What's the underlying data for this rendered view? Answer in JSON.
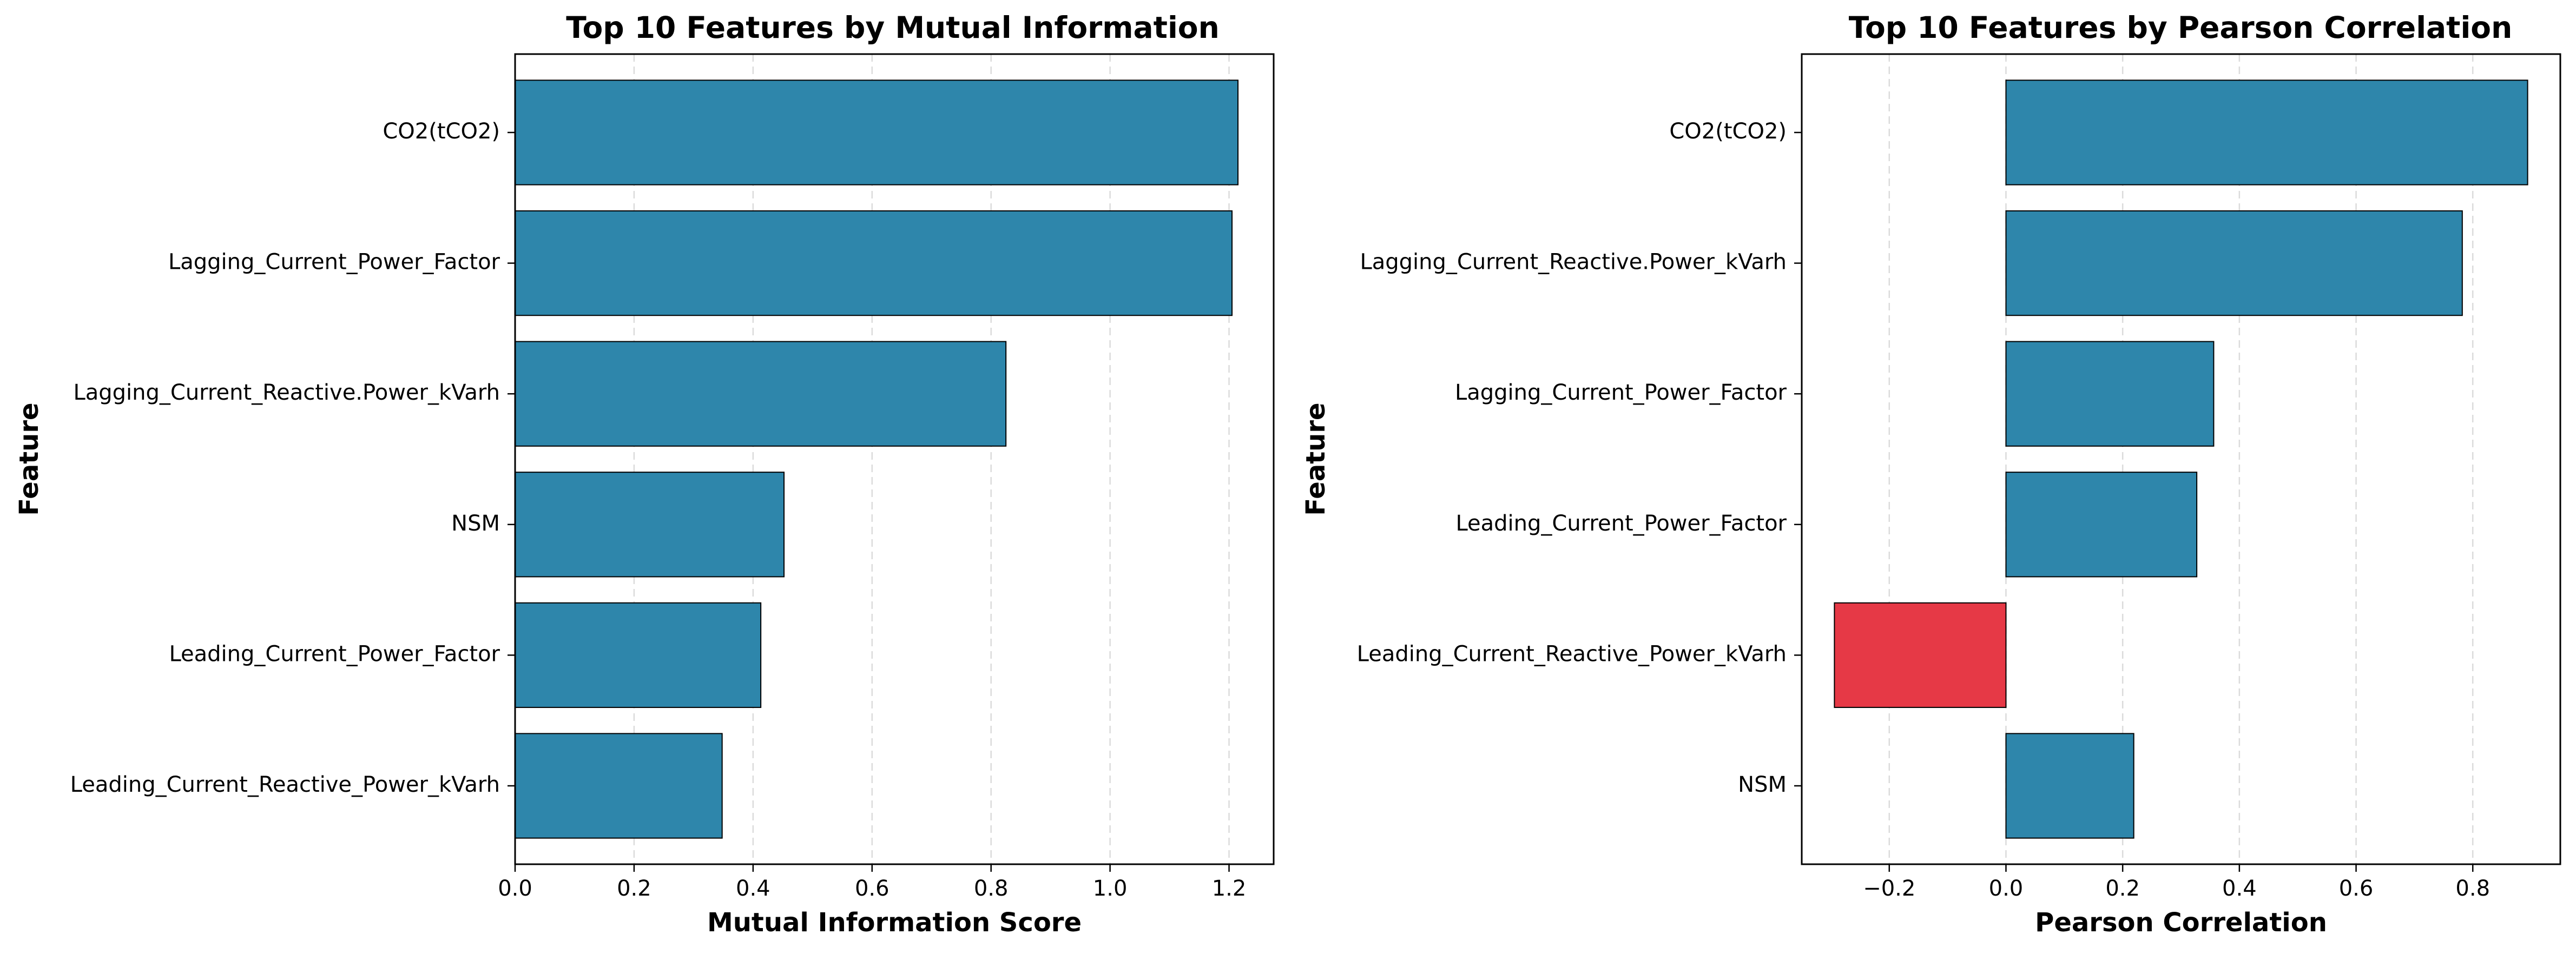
{
  "colors": {
    "positive_bar": "#2e86ab",
    "negative_bar": "#e63946",
    "bar_edge": "#000000",
    "grid": "#cccccc"
  },
  "chart_data": [
    {
      "type": "bar",
      "orientation": "horizontal",
      "title": "Top 10 Features by Mutual Information",
      "xlabel": "Mutual Information Score",
      "ylabel": "Feature",
      "categories": [
        "CO2(tCO2)",
        "Lagging_Current_Power_Factor",
        "Lagging_Current_Reactive.Power_kVarh",
        "NSM",
        "Leading_Current_Power_Factor",
        "Leading_Current_Reactive_Power_kVarh"
      ],
      "values": [
        1.215,
        1.205,
        0.825,
        0.452,
        0.413,
        0.348
      ],
      "xlim": [
        0,
        1.275
      ],
      "xticks": [
        0.0,
        0.2,
        0.4,
        0.6,
        0.8,
        1.0,
        1.2
      ],
      "xtick_labels": [
        "0.0",
        "0.2",
        "0.4",
        "0.6",
        "0.8",
        "1.0",
        "1.2"
      ],
      "grid": "x-dashed"
    },
    {
      "type": "bar",
      "orientation": "horizontal",
      "title": "Top 10 Features by Pearson Correlation",
      "xlabel": "Pearson Correlation",
      "ylabel": "Feature",
      "categories": [
        "CO2(tCO2)",
        "Lagging_Current_Reactive.Power_kVarh",
        "Lagging_Current_Power_Factor",
        "Leading_Current_Power_Factor",
        "Leading_Current_Reactive_Power_kVarh",
        "NSM"
      ],
      "values": [
        0.894,
        0.782,
        0.356,
        0.327,
        -0.294,
        0.219
      ],
      "xlim": [
        -0.35,
        0.95
      ],
      "xticks": [
        -0.2,
        0.0,
        0.2,
        0.4,
        0.6,
        0.8
      ],
      "xtick_labels": [
        "−0.2",
        "0.0",
        "0.2",
        "0.4",
        "0.6",
        "0.8"
      ],
      "grid": "x-dashed"
    }
  ]
}
